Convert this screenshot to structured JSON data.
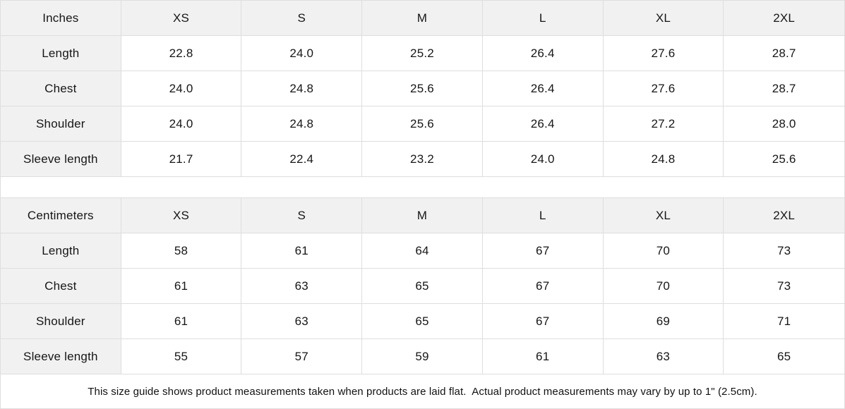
{
  "colors": {
    "header_background": "#f1f1f1",
    "cell_background": "#ffffff",
    "border": "#dedede",
    "text": "#161616"
  },
  "chart_data": [
    {
      "type": "table",
      "title": "Inches",
      "columns": [
        "Inches",
        "XS",
        "S",
        "M",
        "L",
        "XL",
        "2XL"
      ],
      "rows": [
        [
          "Length",
          "22.8",
          "24.0",
          "25.2",
          "26.4",
          "27.6",
          "28.7"
        ],
        [
          "Chest",
          "24.0",
          "24.8",
          "25.6",
          "26.4",
          "27.6",
          "28.7"
        ],
        [
          "Shoulder",
          "24.0",
          "24.8",
          "25.6",
          "26.4",
          "27.2",
          "28.0"
        ],
        [
          "Sleeve length",
          "21.7",
          "22.4",
          "23.2",
          "24.0",
          "24.8",
          "25.6"
        ]
      ]
    },
    {
      "type": "table",
      "title": "Centimeters",
      "columns": [
        "Centimeters",
        "XS",
        "S",
        "M",
        "L",
        "XL",
        "2XL"
      ],
      "rows": [
        [
          "Length",
          "58",
          "61",
          "64",
          "67",
          "70",
          "73"
        ],
        [
          "Chest",
          "61",
          "63",
          "65",
          "67",
          "70",
          "73"
        ],
        [
          "Shoulder",
          "61",
          "63",
          "65",
          "67",
          "69",
          "71"
        ],
        [
          "Sleeve length",
          "55",
          "57",
          "59",
          "61",
          "63",
          "65"
        ]
      ]
    }
  ],
  "footer": {
    "note": "This size guide shows product measurements taken when products are laid flat.  Actual product measurements may vary by up to 1\" (2.5cm)."
  }
}
